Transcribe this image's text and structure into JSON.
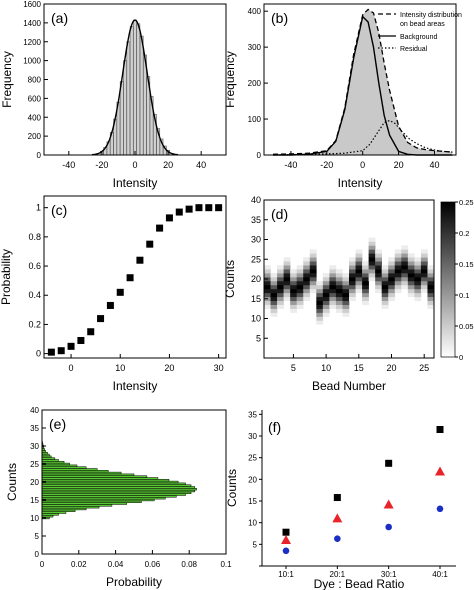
{
  "chart_data": [
    {
      "id": "a",
      "panel_label": "(a)",
      "type": "bar",
      "xlabel": "Intensity",
      "ylabel": "Frequency",
      "xlim": [
        -55,
        55
      ],
      "ylim": [
        0,
        1600
      ],
      "xticks": [
        -40,
        -20,
        0,
        20,
        40
      ],
      "yticks": [
        0,
        200,
        400,
        600,
        800,
        1000,
        1200,
        1400,
        1600
      ],
      "x": [
        -20,
        -18,
        -16,
        -14,
        -12,
        -10,
        -8,
        -6,
        -4,
        -2,
        0,
        2,
        4,
        6,
        8,
        10,
        12,
        14,
        16,
        18,
        20
      ],
      "values": [
        40,
        80,
        140,
        240,
        380,
        560,
        780,
        1000,
        1200,
        1360,
        1430,
        1390,
        1260,
        1060,
        830,
        620,
        430,
        280,
        170,
        95,
        50
      ],
      "fit": {
        "mean": 0,
        "sigma": 7.4,
        "amplitude": 1430
      }
    },
    {
      "id": "b",
      "panel_label": "(b)",
      "type": "area",
      "xlabel": "Intensity",
      "ylabel": "Frequency",
      "xlim": [
        -55,
        52
      ],
      "ylim": [
        0,
        420
      ],
      "xticks": [
        -40,
        -20,
        0,
        20,
        40
      ],
      "yticks": [
        0,
        100,
        200,
        300,
        400
      ],
      "legend": [
        "Intensity distribution",
        "on bead areas",
        "Background",
        "Residual"
      ],
      "series": [
        {
          "name": "Intensity distribution on bead areas",
          "x": [
            -50,
            -40,
            -30,
            -20,
            -15,
            -10,
            -5,
            0,
            3,
            6,
            9,
            12,
            15,
            20,
            25,
            30,
            35,
            40,
            45,
            50
          ],
          "values": [
            2,
            3,
            5,
            12,
            40,
            130,
            280,
            390,
            405,
            395,
            340,
            255,
            180,
            80,
            35,
            20,
            15,
            12,
            10,
            8
          ]
        },
        {
          "name": "Background",
          "x": [
            -50,
            -40,
            -30,
            -20,
            -15,
            -10,
            -5,
            0,
            3,
            6,
            9,
            12,
            15,
            20,
            25,
            30,
            40,
            50
          ],
          "values": [
            0,
            0,
            2,
            10,
            38,
            125,
            270,
            385,
            370,
            300,
            200,
            110,
            55,
            10,
            2,
            0,
            0,
            0
          ]
        },
        {
          "name": "Residual",
          "x": [
            -50,
            -30,
            -20,
            -10,
            0,
            4,
            8,
            12,
            15,
            18,
            22,
            26,
            30,
            35,
            40,
            45,
            50
          ],
          "values": [
            0,
            2,
            3,
            5,
            12,
            30,
            60,
            90,
            96,
            88,
            65,
            45,
            32,
            20,
            14,
            10,
            8
          ]
        }
      ]
    },
    {
      "id": "c",
      "panel_label": "(c)",
      "type": "scatter",
      "xlabel": "Intensity",
      "ylabel": "Probability",
      "xlim": [
        -5.5,
        31.5
      ],
      "ylim": [
        -0.03,
        1.08
      ],
      "xticks": [
        0,
        10,
        20,
        30
      ],
      "yticks": [
        0.0,
        0.2,
        0.4,
        0.6,
        0.8,
        1.0
      ],
      "x": [
        -4,
        -2,
        0,
        2,
        4,
        6,
        8,
        10,
        12,
        14,
        16,
        18,
        20,
        22,
        24,
        26,
        28,
        30
      ],
      "values": [
        0.01,
        0.02,
        0.05,
        0.09,
        0.15,
        0.24,
        0.33,
        0.42,
        0.52,
        0.64,
        0.75,
        0.86,
        0.93,
        0.97,
        0.99,
        1.0,
        1.0,
        1.0
      ]
    },
    {
      "id": "d",
      "panel_label": "(d)",
      "type": "heatmap",
      "xlabel": "Bead Number",
      "ylabel": "Counts",
      "xlim": [
        0.5,
        26.5
      ],
      "ylim": [
        0,
        40
      ],
      "xticks": [
        5,
        10,
        15,
        20,
        25
      ],
      "yticks": [
        5,
        10,
        15,
        20,
        25,
        30,
        35,
        40
      ],
      "colorbar_ticks": [
        0,
        0.05,
        0.1,
        0.15,
        0.2,
        0.25
      ],
      "colorbar_labels": [
        "0",
        "0.05",
        "0.1",
        "0.15",
        "0.2",
        "0.25"
      ],
      "vmax": 0.25,
      "centers": [
        18,
        16,
        18,
        20,
        17,
        18,
        20,
        22,
        14,
        16,
        18,
        17,
        16,
        20,
        22,
        19,
        25,
        22,
        18,
        20,
        22,
        23,
        21,
        20,
        22,
        18
      ]
    },
    {
      "id": "e",
      "panel_label": "(e)",
      "type": "bar",
      "orientation": "horizontal",
      "xlabel": "Probability",
      "ylabel": "Counts",
      "xlim": [
        0,
        0.1
      ],
      "ylim": [
        0,
        40
      ],
      "xticks": [
        0,
        0.02,
        0.04,
        0.06,
        0.08,
        0.1
      ],
      "xtick_labels": [
        "0",
        "0.02",
        "0.04",
        "0.06",
        "0.08",
        "0.1"
      ],
      "yticks": [
        0,
        5,
        10,
        15,
        20,
        25,
        30,
        35,
        40
      ],
      "y": [
        10,
        10.5,
        11,
        11.5,
        12,
        12.5,
        13,
        13.5,
        14,
        14.5,
        15,
        15.5,
        16,
        16.5,
        17,
        17.5,
        18,
        18.5,
        19,
        19.5,
        20,
        20.5,
        21,
        21.5,
        22,
        22.5,
        23,
        23.5,
        24,
        24.5,
        25,
        25.5,
        26,
        26.5,
        27,
        27.5,
        28,
        28.5,
        29,
        29.5,
        30,
        30.5,
        31
      ],
      "values": [
        0.004,
        0.006,
        0.009,
        0.013,
        0.018,
        0.024,
        0.031,
        0.038,
        0.046,
        0.054,
        0.061,
        0.067,
        0.073,
        0.078,
        0.081,
        0.083,
        0.084,
        0.083,
        0.081,
        0.078,
        0.074,
        0.069,
        0.063,
        0.057,
        0.05,
        0.043,
        0.036,
        0.03,
        0.024,
        0.019,
        0.015,
        0.012,
        0.009,
        0.007,
        0.005,
        0.004,
        0.003,
        0.002,
        0.0015,
        0.001,
        0.0008,
        0.0005,
        0.0003
      ]
    },
    {
      "id": "f",
      "panel_label": "(f)",
      "type": "scatter",
      "xlabel": "Dye : Bead Ratio",
      "ylabel": "Counts",
      "categories": [
        "10:1",
        "20:1",
        "30:1",
        "40:1"
      ],
      "ylim": [
        0,
        36
      ],
      "yticks": [
        0,
        5,
        10,
        15,
        20,
        25,
        30,
        35
      ],
      "series": [
        {
          "marker": "square",
          "color": "#000000",
          "values": [
            7.8,
            15.8,
            23.7,
            31.5
          ]
        },
        {
          "marker": "triangle",
          "color": "#e8242a",
          "values": [
            6.0,
            11.0,
            14.2,
            21.8
          ]
        },
        {
          "marker": "circle",
          "color": "#1b2fc4",
          "values": [
            3.5,
            6.3,
            9.0,
            13.2
          ]
        }
      ]
    }
  ]
}
